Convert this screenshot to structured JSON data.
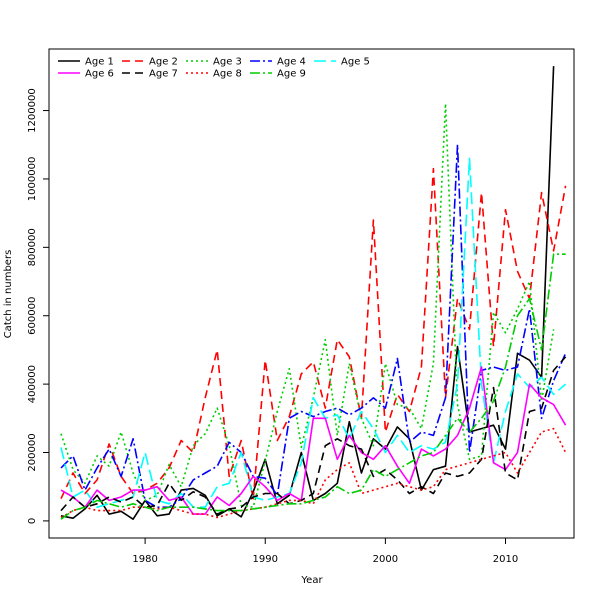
{
  "chart_data": {
    "type": "line",
    "title": "",
    "xlabel": "Year",
    "ylabel": "Catch in numbers",
    "xlim": [
      1972.0,
      1976.0,
      2015.7
    ],
    "ylim": [
      -50000,
      1380000
    ],
    "x_ticks": [
      1980,
      1990,
      2000,
      2010
    ],
    "y_ticks": [
      0,
      200000,
      400000,
      600000,
      800000,
      1000000,
      1200000
    ],
    "grid": false,
    "legend": "top-left",
    "x": [
      1973,
      1974,
      1975,
      1976,
      1977,
      1978,
      1979,
      1980,
      1981,
      1982,
      1983,
      1984,
      1985,
      1986,
      1987,
      1988,
      1989,
      1990,
      1991,
      1992,
      1993,
      1994,
      1995,
      1996,
      1997,
      1998,
      1999,
      2000,
      2001,
      2002,
      2003,
      2004,
      2005,
      2006,
      2007,
      2008,
      2009,
      2010,
      2011,
      2012,
      2013,
      2014,
      2015
    ],
    "series": [
      {
        "name": "Age 1",
        "color": "#000000",
        "dash": "solid",
        "values": [
          15000,
          8000,
          35000,
          75000,
          20000,
          28000,
          5000,
          60000,
          15000,
          20000,
          90000,
          95000,
          75000,
          15000,
          35000,
          12000,
          85000,
          180000,
          50000,
          75000,
          200000,
          60000,
          80000,
          110000,
          290000,
          140000,
          240000,
          210000,
          275000,
          240000,
          90000,
          150000,
          160000,
          510000,
          260000,
          270000,
          280000,
          210000,
          490000,
          470000,
          420000,
          1330000,
          null
        ]
      },
      {
        "name": "Age 2",
        "color": "#ff0000",
        "dash": "8,5",
        "values": [
          65000,
          140000,
          80000,
          120000,
          225000,
          130000,
          80000,
          90000,
          110000,
          155000,
          235000,
          200000,
          360000,
          500000,
          130000,
          235000,
          65000,
          470000,
          235000,
          305000,
          430000,
          465000,
          330000,
          530000,
          480000,
          300000,
          880000,
          260000,
          370000,
          320000,
          450000,
          1030000,
          360000,
          650000,
          560000,
          960000,
          510000,
          910000,
          730000,
          650000,
          960000,
          790000,
          980000
        ]
      },
      {
        "name": "Age 3",
        "color": "#00cd00",
        "dash": "2,3",
        "values": [
          255000,
          150000,
          110000,
          190000,
          160000,
          260000,
          140000,
          60000,
          75000,
          165000,
          100000,
          220000,
          255000,
          330000,
          220000,
          45000,
          40000,
          175000,
          320000,
          445000,
          215000,
          360000,
          530000,
          250000,
          460000,
          300000,
          220000,
          460000,
          340000,
          330000,
          270000,
          460000,
          1220000,
          340000,
          180000,
          190000,
          610000,
          550000,
          620000,
          700000,
          350000,
          560000,
          null
        ]
      },
      {
        "name": "Age 4",
        "color": "#0000ff",
        "dash": "10,3,2,3",
        "values": [
          155000,
          190000,
          90000,
          155000,
          210000,
          130000,
          240000,
          60000,
          40000,
          40000,
          65000,
          120000,
          140000,
          160000,
          230000,
          200000,
          130000,
          125000,
          75000,
          300000,
          320000,
          305000,
          320000,
          330000,
          310000,
          330000,
          360000,
          330000,
          475000,
          230000,
          260000,
          250000,
          360000,
          1100000,
          200000,
          440000,
          450000,
          440000,
          450000,
          620000,
          300000,
          410000,
          490000
        ]
      },
      {
        "name": "Age 5",
        "color": "#00ffff",
        "dash": "12,5",
        "values": [
          215000,
          70000,
          90000,
          40000,
          50000,
          60000,
          70000,
          200000,
          60000,
          50000,
          80000,
          40000,
          40000,
          100000,
          110000,
          200000,
          70000,
          60000,
          70000,
          80000,
          170000,
          360000,
          300000,
          310000,
          240000,
          320000,
          270000,
          200000,
          250000,
          200000,
          220000,
          210000,
          230000,
          400000,
          1060000,
          400000,
          170000,
          320000,
          430000,
          390000,
          420000,
          370000,
          400000
        ]
      },
      {
        "name": "Age 6",
        "color": "#ff00ff",
        "dash": "solid",
        "values": [
          90000,
          70000,
          40000,
          90000,
          60000,
          70000,
          90000,
          90000,
          100000,
          60000,
          70000,
          20000,
          20000,
          70000,
          45000,
          80000,
          130000,
          100000,
          60000,
          80000,
          60000,
          300000,
          300000,
          180000,
          250000,
          200000,
          180000,
          220000,
          160000,
          110000,
          210000,
          190000,
          210000,
          250000,
          330000,
          450000,
          170000,
          150000,
          200000,
          400000,
          360000,
          340000,
          280000
        ]
      },
      {
        "name": "Age 7",
        "color": "#000000",
        "dash": "8,5",
        "values": [
          30000,
          70000,
          40000,
          50000,
          70000,
          55000,
          70000,
          40000,
          45000,
          110000,
          60000,
          85000,
          70000,
          20000,
          35000,
          40000,
          70000,
          80000,
          80000,
          50000,
          60000,
          80000,
          220000,
          240000,
          220000,
          210000,
          130000,
          150000,
          120000,
          80000,
          100000,
          80000,
          140000,
          130000,
          140000,
          180000,
          390000,
          140000,
          120000,
          320000,
          330000,
          440000,
          480000
        ]
      },
      {
        "name": "Age 8",
        "color": "#ff0000",
        "dash": "2,3",
        "values": [
          10000,
          30000,
          40000,
          30000,
          30000,
          30000,
          40000,
          40000,
          35000,
          40000,
          30000,
          20000,
          20000,
          10000,
          20000,
          30000,
          35000,
          40000,
          50000,
          60000,
          60000,
          50000,
          120000,
          150000,
          170000,
          80000,
          90000,
          100000,
          110000,
          100000,
          90000,
          100000,
          150000,
          160000,
          170000,
          180000,
          190000,
          200000,
          140000,
          200000,
          260000,
          270000,
          200000
        ]
      },
      {
        "name": "Age 9",
        "color": "#00cd00",
        "dash": "10,3,2,3",
        "values": [
          5000,
          30000,
          40000,
          60000,
          50000,
          40000,
          50000,
          40000,
          30000,
          40000,
          40000,
          40000,
          35000,
          30000,
          30000,
          30000,
          35000,
          40000,
          45000,
          50000,
          50000,
          60000,
          70000,
          100000,
          80000,
          90000,
          150000,
          130000,
          150000,
          170000,
          190000,
          200000,
          250000,
          300000,
          260000,
          300000,
          350000,
          450000,
          600000,
          650000,
          500000,
          780000,
          780000
        ]
      }
    ]
  }
}
